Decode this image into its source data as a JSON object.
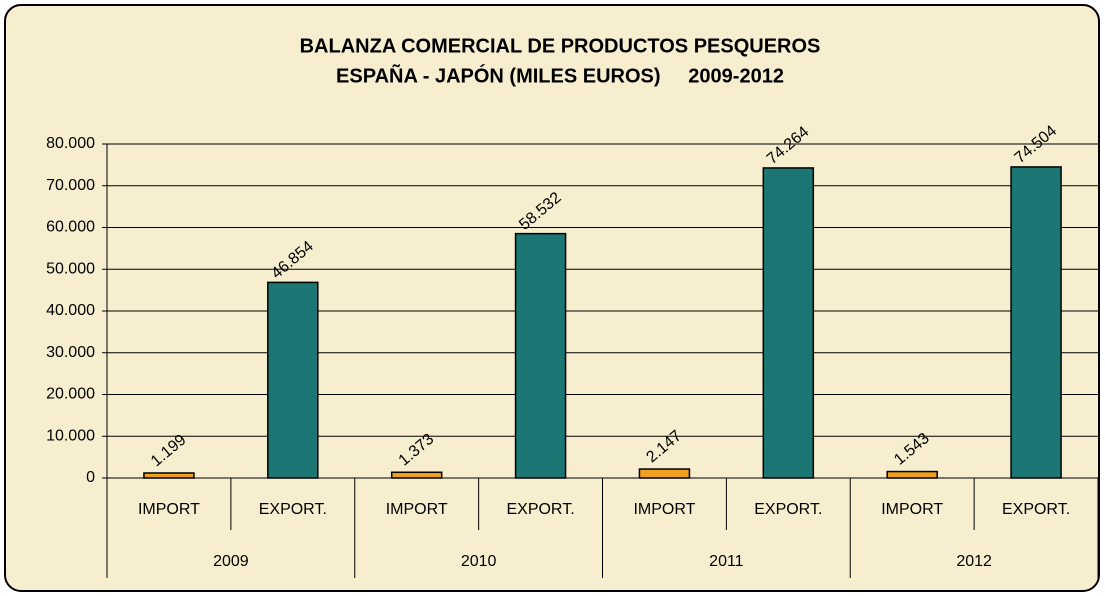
{
  "chart_data": {
    "type": "bar",
    "title": [
      "BALANZA COMERCIAL DE PRODUCTOS PESQUEROS",
      "ESPAÑA - JAPÓN (MILES EUROS)     2009-2012"
    ],
    "categories": [
      "2009",
      "2010",
      "2011",
      "2012"
    ],
    "series": [
      {
        "name": "IMPORT",
        "color": "#f0a020",
        "values": [
          1199,
          1373,
          2147,
          1543
        ],
        "value_labels": [
          "1.199",
          "1.373",
          "2.147",
          "1.543"
        ]
      },
      {
        "name": "EXPORT.",
        "color": "#1c7673",
        "values": [
          46854,
          58532,
          74264,
          74504
        ],
        "value_labels": [
          "46.854",
          "58.532",
          "74.264",
          "74.504"
        ]
      }
    ],
    "ylim": [
      0,
      80000
    ],
    "yticks": [
      0,
      {
        "value": 10000,
        "label": "10.000"
      },
      {
        "value": 20000,
        "label": "20.000"
      },
      {
        "value": 30000,
        "label": "30.000"
      },
      {
        "value": 40000,
        "label": "40.000"
      },
      {
        "value": 50000,
        "label": "50.000"
      },
      {
        "value": 60000,
        "label": "60.000"
      },
      {
        "value": 70000,
        "label": "70.000"
      },
      {
        "value": 80000,
        "label": "80.000"
      }
    ],
    "grid": true
  }
}
